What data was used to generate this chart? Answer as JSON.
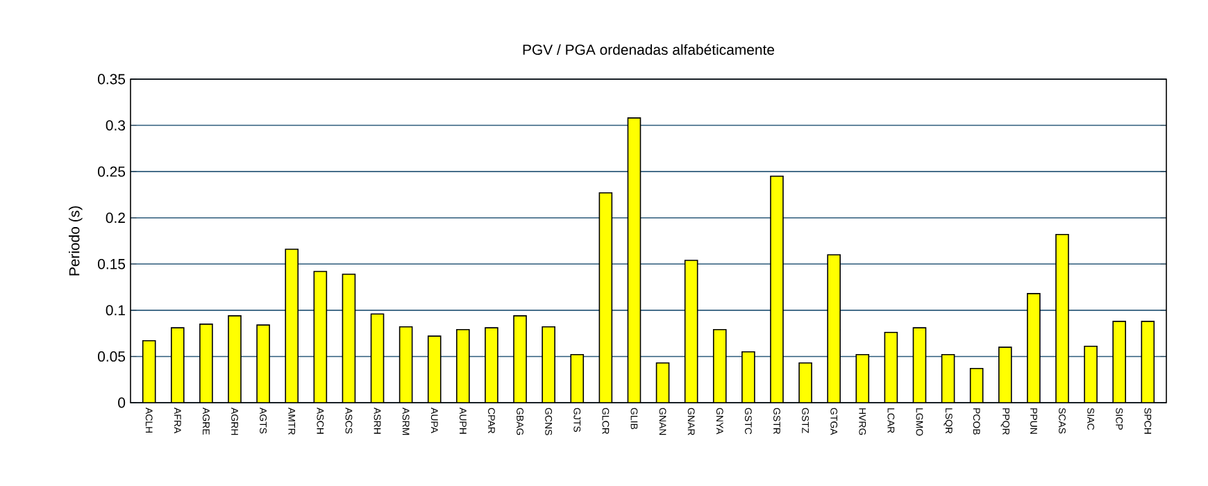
{
  "chart_data": {
    "type": "bar",
    "title": "PGV / PGA ordenadas alfabéticamente",
    "ylabel": "Periodo (s)",
    "categories": [
      "ACLH",
      "AFRA",
      "AGRE",
      "AGRH",
      "AGTS",
      "AMTR",
      "ASCH",
      "ASCS",
      "ASRH",
      "ASRM",
      "AUPA",
      "AUPH",
      "CPAR",
      "GBAG",
      "GCNS",
      "GJTS",
      "GLCR",
      "GLIB",
      "GNAN",
      "GNAR",
      "GNYA",
      "GSTC",
      "GSTR",
      "GSTZ",
      "GTGA",
      "HVRG",
      "LCAR",
      "LGMO",
      "LSQR",
      "PCOB",
      "PPQR",
      "PPUN",
      "SCAS",
      "SIAC",
      "SICP",
      "SPCH"
    ],
    "values": [
      0.067,
      0.081,
      0.085,
      0.094,
      0.084,
      0.166,
      0.142,
      0.139,
      0.096,
      0.082,
      0.072,
      0.079,
      0.081,
      0.094,
      0.082,
      0.052,
      0.227,
      0.308,
      0.043,
      0.154,
      0.079,
      0.055,
      0.245,
      0.043,
      0.16,
      0.052,
      0.076,
      0.081,
      0.052,
      0.037,
      0.06,
      0.118,
      0.182,
      0.061,
      0.088,
      0.088
    ],
    "color": "#ffff00",
    "ylim": [
      0,
      0.35
    ],
    "yticks": [
      0,
      0.05,
      0.1,
      0.15,
      0.2,
      0.25,
      0.3,
      0.35
    ],
    "grid": "y"
  }
}
